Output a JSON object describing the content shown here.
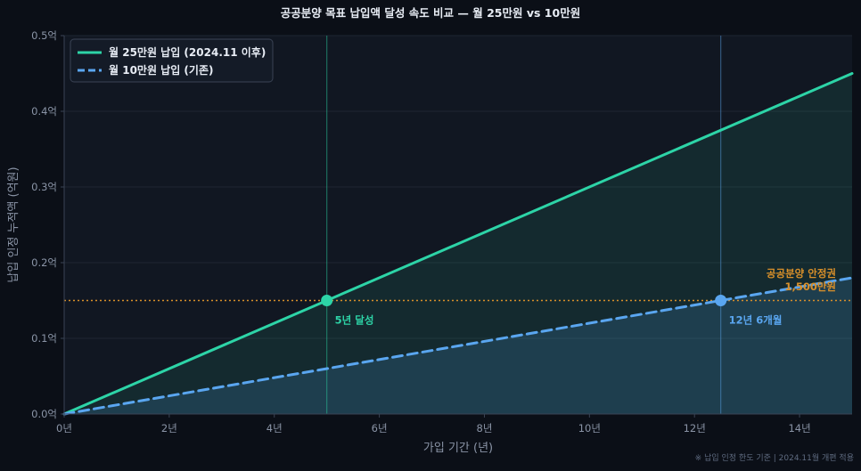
{
  "chart_data": {
    "type": "line",
    "title": "공공분양 목표 납입액 달성 속도 비교 — 월 25만원 vs 10만원",
    "xlabel": "가입 기간 (년)",
    "ylabel": "납입 인정 누적액 (억원)",
    "xlim": [
      0,
      15
    ],
    "ylim": [
      0,
      0.5
    ],
    "x_ticks": [
      {
        "value": 0,
        "label": "0년"
      },
      {
        "value": 2,
        "label": "2년"
      },
      {
        "value": 4,
        "label": "4년"
      },
      {
        "value": 6,
        "label": "6년"
      },
      {
        "value": 8,
        "label": "8년"
      },
      {
        "value": 10,
        "label": "10년"
      },
      {
        "value": 12,
        "label": "12년"
      },
      {
        "value": 14,
        "label": "14년"
      }
    ],
    "y_ticks": [
      {
        "value": 0,
        "label": "0.0억"
      },
      {
        "value": 0.1,
        "label": "0.1억"
      },
      {
        "value": 0.2,
        "label": "0.2억"
      },
      {
        "value": 0.3,
        "label": "0.3억"
      },
      {
        "value": 0.4,
        "label": "0.4억"
      },
      {
        "value": 0.5,
        "label": "0.5억"
      }
    ],
    "grid": true,
    "legend_position": "top-left",
    "series": [
      {
        "name": "월 25만원 납입 (2024.11 이후)",
        "color": "#2dd4a7",
        "style": "solid",
        "x": [
          0,
          15
        ],
        "y": [
          0,
          0.45
        ]
      },
      {
        "name": "월 10만원 납입 (기존)",
        "color": "#5aa6f0",
        "style": "dashed",
        "x": [
          0,
          15
        ],
        "y": [
          0,
          0.18
        ]
      }
    ],
    "threshold": {
      "value": 0.15,
      "color": "#d9902a",
      "label_line1": "공공분양 안정권",
      "label_line2": "1,500만원"
    },
    "milestones": [
      {
        "x": 5,
        "y": 0.15,
        "label": "5년 달성",
        "color": "#2dd4a7"
      },
      {
        "x": 12.5,
        "y": 0.15,
        "label": "12년 6개월",
        "color": "#5aa6f0"
      }
    ],
    "footnote": "※ 납입 인정 한도 기준 | 2024.11월 개편 적용"
  }
}
